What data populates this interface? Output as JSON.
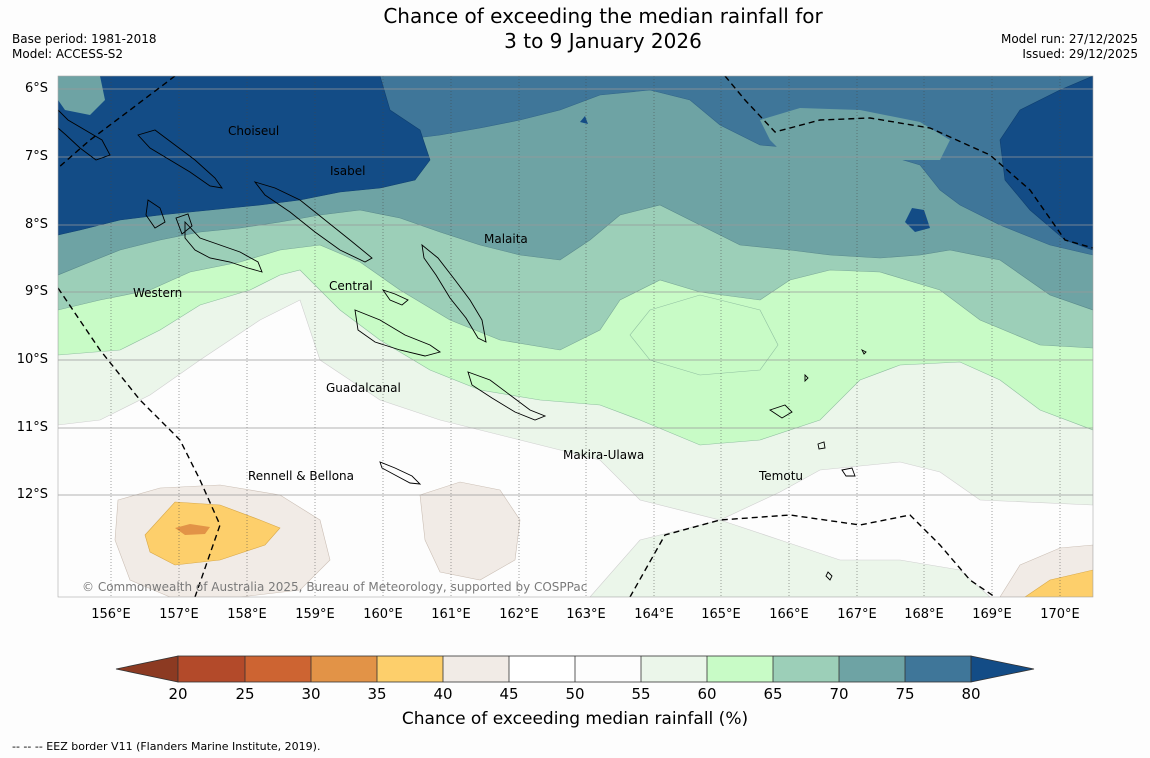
{
  "title": {
    "line1": "Chance of exceeding the median rainfall for",
    "line2": "3 to 9 January 2026"
  },
  "meta_left": {
    "base_period": "Base period: 1981-2018",
    "model": "Model: ACCESS-S2"
  },
  "meta_right": {
    "model_run": "Model run: 27/12/2025",
    "issued": "Issued: 29/12/2025"
  },
  "latitude_labels": [
    "6°S",
    "7°S",
    "8°S",
    "9°S",
    "10°S",
    "11°S",
    "12°S"
  ],
  "longitude_labels": [
    "156°E",
    "157°E",
    "158°E",
    "159°E",
    "160°E",
    "161°E",
    "162°E",
    "163°E",
    "164°E",
    "165°E",
    "166°E",
    "167°E",
    "168°E",
    "169°E",
    "170°E"
  ],
  "places": {
    "choiseul": "Choiseul",
    "isabel": "Isabel",
    "malaita": "Malaita",
    "central": "Central",
    "western": "Western",
    "guadalcanal": "Guadalcanal",
    "makira": "Makira-Ulawa",
    "rennell": "Rennell & Bellona",
    "temotu": "Temotu"
  },
  "copyright": "© Commonwealth of Australia 2025, Bureau of Meteorology, supported by COSPPac",
  "colorbar": {
    "label": "Chance of exceeding median rainfall (%)",
    "ticks": [
      "20",
      "25",
      "30",
      "35",
      "40",
      "45",
      "50",
      "55",
      "60",
      "65",
      "70",
      "75",
      "80"
    ],
    "colors": {
      "below_20": "#8c3a22",
      "20_25": "#b34a2a",
      "25_30": "#cd6432",
      "30_35": "#e29347",
      "35_40": "#fdcf6b",
      "40_45": "#f1ebe6",
      "45_50": "#ffffff",
      "50_55": "#fdfdfd",
      "55_60": "#ebf6ea",
      "60_65": "#c8fbc6",
      "65_70": "#9ccfb8",
      "70_75": "#6ea3a4",
      "75_80": "#3f7699",
      "above_80": "#134c86"
    }
  },
  "footer": "--  --  -- EEZ border V11 (Flanders Marine Institute, 2019)."
}
